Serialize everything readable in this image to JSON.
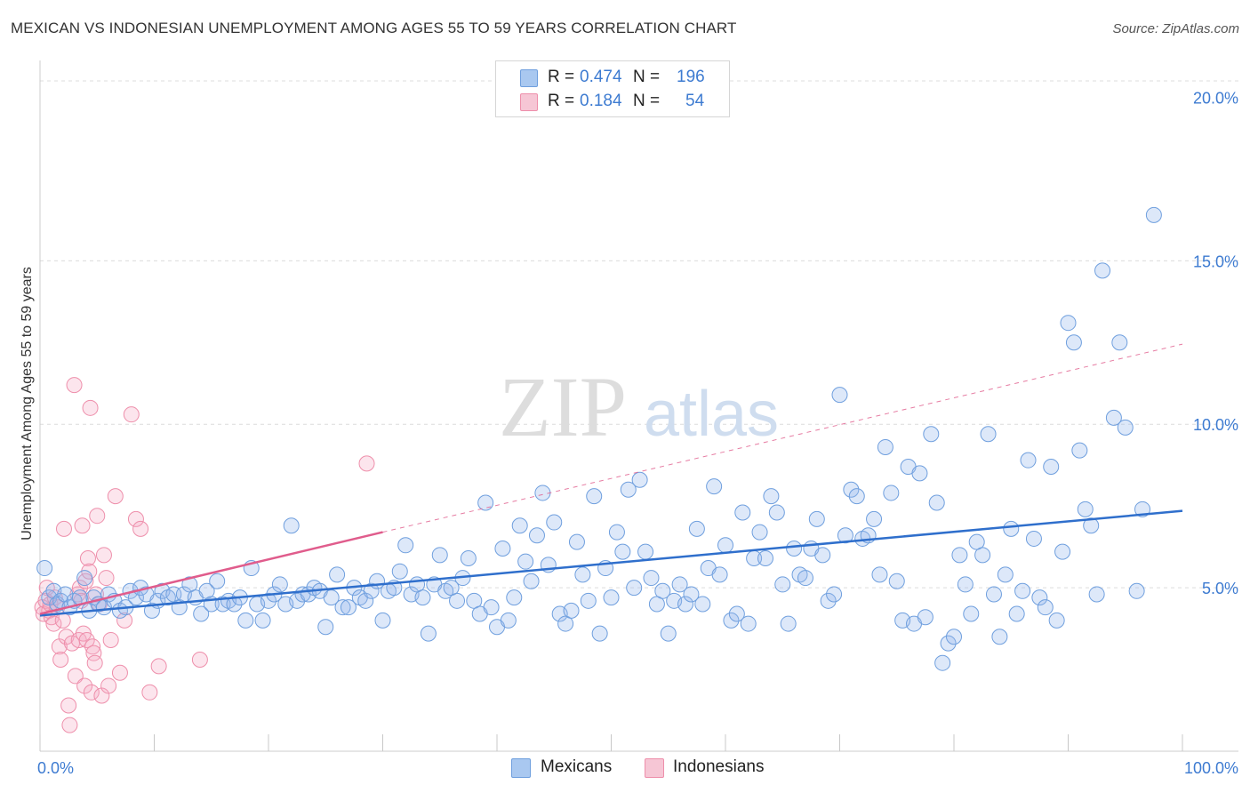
{
  "title": "MEXICAN VS INDONESIAN UNEMPLOYMENT AMONG AGES 55 TO 59 YEARS CORRELATION CHART",
  "source": "Source: ZipAtlas.com",
  "watermark": {
    "zip": "ZIP",
    "atlas": "atlas"
  },
  "legend_top": {
    "rows": [
      {
        "r_label": "R =",
        "r_value": "0.474",
        "n_label": "N =",
        "n_value": "196",
        "color": "#a9c8f0"
      },
      {
        "r_label": "R =",
        "r_value": "0.184",
        "n_label": "N =",
        "n_value": "54",
        "color": "#f6b9cb"
      }
    ]
  },
  "legend_bottom": {
    "items": [
      {
        "label": "Mexicans",
        "color": "#a9c8f0"
      },
      {
        "label": "Indonesians",
        "color": "#f6b9cb"
      }
    ]
  },
  "colors": {
    "blue_fill": "rgba(150,185,235,0.32)",
    "blue_stroke": "#6f9fde",
    "blue_line": "#2f6fcc",
    "pink_fill": "rgba(245,170,195,0.30)",
    "pink_stroke": "#ee8fab",
    "pink_line": "#e05c8c",
    "tick_label": "#3d7bd1",
    "grid": "#dcdcdc"
  },
  "chart_data": {
    "type": "scatter",
    "ylabel": "Unemployment Among Ages 55 to 59 years",
    "xlim": [
      0,
      100
    ],
    "ylim": [
      0,
      20.8
    ],
    "x_tick_labels": [
      {
        "value": 0,
        "label": "0.0%"
      },
      {
        "value": 100,
        "label": "100.0%"
      }
    ],
    "y_tick_labels": [
      {
        "value": 5,
        "label": "5.0%"
      },
      {
        "value": 10,
        "label": "10.0%"
      },
      {
        "value": 15,
        "label": "15.0%"
      },
      {
        "value": 20,
        "label": "20.0%"
      }
    ],
    "y_gridlines": [
      5,
      10,
      15,
      20.5
    ],
    "grid": true,
    "series": [
      {
        "name": "Mexicans",
        "r": 0.474,
        "n": 196,
        "trend": {
          "x0": 0,
          "y0": 4.15,
          "x1": 100,
          "y1": 7.35
        },
        "points": [
          [
            0.4,
            5.6
          ],
          [
            0.8,
            4.7
          ],
          [
            1.2,
            4.9
          ],
          [
            1.5,
            4.5
          ],
          [
            1.8,
            4.6
          ],
          [
            2.2,
            4.8
          ],
          [
            2.6,
            4.4
          ],
          [
            3.0,
            4.6
          ],
          [
            3.5,
            4.7
          ],
          [
            3.9,
            5.3
          ],
          [
            4.3,
            4.3
          ],
          [
            4.7,
            4.7
          ],
          [
            5.1,
            4.5
          ],
          [
            5.6,
            4.4
          ],
          [
            6.0,
            4.8
          ],
          [
            6.5,
            4.6
          ],
          [
            7.0,
            4.3
          ],
          [
            7.5,
            4.4
          ],
          [
            7.9,
            4.9
          ],
          [
            8.4,
            4.7
          ],
          [
            8.8,
            5.0
          ],
          [
            9.3,
            4.8
          ],
          [
            9.8,
            4.3
          ],
          [
            10.3,
            4.6
          ],
          [
            10.7,
            4.9
          ],
          [
            11.2,
            4.7
          ],
          [
            11.7,
            4.8
          ],
          [
            12.2,
            4.4
          ],
          [
            12.6,
            4.8
          ],
          [
            13.1,
            5.1
          ],
          [
            13.6,
            4.7
          ],
          [
            14.1,
            4.2
          ],
          [
            14.6,
            4.9
          ],
          [
            15.0,
            4.5
          ],
          [
            15.5,
            5.2
          ],
          [
            16.0,
            4.5
          ],
          [
            16.5,
            4.6
          ],
          [
            17.0,
            4.5
          ],
          [
            17.5,
            4.7
          ],
          [
            18.0,
            4.0
          ],
          [
            18.5,
            5.6
          ],
          [
            19.0,
            4.5
          ],
          [
            19.5,
            4.0
          ],
          [
            20.0,
            4.6
          ],
          [
            20.5,
            4.8
          ],
          [
            21.0,
            5.1
          ],
          [
            21.5,
            4.5
          ],
          [
            22.0,
            6.9
          ],
          [
            22.5,
            4.6
          ],
          [
            23.0,
            4.8
          ],
          [
            23.5,
            4.8
          ],
          [
            24.0,
            5.0
          ],
          [
            24.5,
            4.9
          ],
          [
            25.0,
            3.8
          ],
          [
            25.5,
            4.7
          ],
          [
            26.0,
            5.4
          ],
          [
            26.5,
            4.4
          ],
          [
            27.0,
            4.4
          ],
          [
            27.5,
            5.0
          ],
          [
            28.0,
            4.7
          ],
          [
            28.5,
            4.6
          ],
          [
            29.0,
            4.9
          ],
          [
            29.5,
            5.2
          ],
          [
            30.0,
            4.0
          ],
          [
            30.5,
            4.9
          ],
          [
            31.0,
            5.0
          ],
          [
            31.5,
            5.5
          ],
          [
            32.0,
            6.3
          ],
          [
            32.5,
            4.8
          ],
          [
            33.0,
            5.1
          ],
          [
            33.5,
            4.7
          ],
          [
            34.0,
            3.6
          ],
          [
            34.5,
            5.1
          ],
          [
            35.0,
            6.0
          ],
          [
            35.5,
            4.9
          ],
          [
            36.0,
            5.0
          ],
          [
            36.5,
            4.6
          ],
          [
            37.0,
            5.3
          ],
          [
            37.5,
            5.9
          ],
          [
            38.0,
            4.6
          ],
          [
            38.5,
            4.2
          ],
          [
            39.0,
            7.6
          ],
          [
            39.5,
            4.4
          ],
          [
            40.0,
            3.8
          ],
          [
            40.5,
            6.2
          ],
          [
            41.0,
            4.0
          ],
          [
            41.5,
            4.7
          ],
          [
            42.0,
            6.9
          ],
          [
            42.5,
            5.8
          ],
          [
            43.0,
            5.2
          ],
          [
            43.5,
            6.6
          ],
          [
            44.0,
            7.9
          ],
          [
            44.5,
            5.7
          ],
          [
            45.0,
            7.0
          ],
          [
            45.5,
            4.2
          ],
          [
            46.0,
            3.9
          ],
          [
            46.5,
            4.3
          ],
          [
            47.0,
            6.4
          ],
          [
            47.5,
            5.4
          ],
          [
            48.0,
            4.6
          ],
          [
            48.5,
            7.8
          ],
          [
            49.0,
            3.6
          ],
          [
            49.5,
            5.6
          ],
          [
            50.0,
            4.7
          ],
          [
            50.5,
            6.7
          ],
          [
            51.0,
            6.1
          ],
          [
            51.5,
            8.0
          ],
          [
            52.0,
            5.0
          ],
          [
            52.5,
            8.3
          ],
          [
            53.0,
            6.1
          ],
          [
            53.5,
            5.3
          ],
          [
            54.0,
            4.5
          ],
          [
            54.5,
            4.9
          ],
          [
            55.0,
            3.6
          ],
          [
            55.5,
            4.6
          ],
          [
            56.0,
            5.1
          ],
          [
            56.5,
            4.5
          ],
          [
            57.0,
            4.8
          ],
          [
            57.5,
            6.8
          ],
          [
            58.0,
            4.5
          ],
          [
            58.5,
            5.6
          ],
          [
            59.0,
            8.1
          ],
          [
            59.5,
            5.4
          ],
          [
            60.0,
            6.3
          ],
          [
            60.5,
            4.0
          ],
          [
            61.0,
            4.2
          ],
          [
            61.5,
            7.3
          ],
          [
            62.0,
            3.9
          ],
          [
            62.5,
            5.9
          ],
          [
            63.0,
            6.7
          ],
          [
            63.5,
            5.9
          ],
          [
            64.0,
            7.8
          ],
          [
            64.5,
            7.3
          ],
          [
            65.0,
            5.1
          ],
          [
            65.5,
            3.9
          ],
          [
            66.0,
            6.2
          ],
          [
            66.5,
            5.4
          ],
          [
            67.0,
            5.3
          ],
          [
            67.5,
            6.2
          ],
          [
            68.0,
            7.1
          ],
          [
            68.5,
            6.0
          ],
          [
            69.0,
            4.6
          ],
          [
            69.5,
            4.8
          ],
          [
            70.0,
            10.9
          ],
          [
            70.5,
            6.6
          ],
          [
            71.0,
            8.0
          ],
          [
            71.5,
            7.8
          ],
          [
            72.0,
            6.5
          ],
          [
            72.5,
            6.6
          ],
          [
            73.0,
            7.1
          ],
          [
            73.5,
            5.4
          ],
          [
            74.0,
            9.3
          ],
          [
            74.5,
            7.9
          ],
          [
            75.0,
            5.2
          ],
          [
            75.5,
            4.0
          ],
          [
            76.0,
            8.7
          ],
          [
            76.5,
            3.9
          ],
          [
            77.0,
            8.5
          ],
          [
            77.5,
            4.1
          ],
          [
            78.0,
            9.7
          ],
          [
            78.5,
            7.6
          ],
          [
            79.0,
            2.7
          ],
          [
            79.5,
            3.3
          ],
          [
            80.0,
            3.5
          ],
          [
            80.5,
            6.0
          ],
          [
            81.0,
            5.1
          ],
          [
            81.5,
            4.2
          ],
          [
            82.0,
            6.4
          ],
          [
            82.5,
            6.0
          ],
          [
            83.0,
            9.7
          ],
          [
            83.5,
            4.8
          ],
          [
            84.0,
            3.5
          ],
          [
            84.5,
            5.4
          ],
          [
            85.0,
            6.8
          ],
          [
            85.5,
            4.2
          ],
          [
            86.0,
            4.9
          ],
          [
            86.5,
            8.9
          ],
          [
            87.0,
            6.5
          ],
          [
            87.5,
            4.7
          ],
          [
            88.0,
            4.4
          ],
          [
            88.5,
            8.7
          ],
          [
            89.0,
            4.0
          ],
          [
            89.5,
            6.1
          ],
          [
            90.0,
            13.1
          ],
          [
            90.5,
            12.5
          ],
          [
            91.0,
            9.2
          ],
          [
            91.5,
            7.4
          ],
          [
            92.0,
            6.9
          ],
          [
            92.5,
            4.8
          ],
          [
            93.0,
            14.7
          ],
          [
            94.0,
            10.2
          ],
          [
            94.5,
            12.5
          ],
          [
            95.0,
            9.9
          ],
          [
            96.0,
            4.9
          ],
          [
            96.5,
            7.4
          ],
          [
            97.5,
            16.4
          ]
        ]
      },
      {
        "name": "Indonesians",
        "r": 0.184,
        "n": 54,
        "trend": {
          "x0": 0,
          "y0": 4.2,
          "x1": 30,
          "y1": 6.7
        },
        "trend_dashed": {
          "x0": 30,
          "y0": 6.7,
          "x1": 100,
          "y1": 12.45
        },
        "points": [
          [
            0.2,
            4.4
          ],
          [
            0.3,
            4.2
          ],
          [
            0.5,
            4.6
          ],
          [
            0.6,
            5.0
          ],
          [
            0.8,
            4.3
          ],
          [
            0.9,
            4.5
          ],
          [
            1.0,
            4.1
          ],
          [
            1.2,
            3.9
          ],
          [
            1.3,
            4.7
          ],
          [
            1.5,
            4.4
          ],
          [
            1.7,
            3.2
          ],
          [
            1.8,
            2.8
          ],
          [
            2.0,
            4.0
          ],
          [
            2.1,
            6.8
          ],
          [
            2.3,
            3.5
          ],
          [
            2.5,
            1.4
          ],
          [
            2.6,
            0.8
          ],
          [
            2.8,
            3.3
          ],
          [
            3.0,
            11.2
          ],
          [
            3.1,
            2.3
          ],
          [
            3.3,
            4.8
          ],
          [
            3.4,
            3.4
          ],
          [
            3.5,
            5.0
          ],
          [
            3.6,
            4.6
          ],
          [
            3.7,
            6.9
          ],
          [
            3.8,
            3.6
          ],
          [
            3.9,
            2.0
          ],
          [
            4.0,
            5.2
          ],
          [
            4.1,
            3.4
          ],
          [
            4.2,
            5.9
          ],
          [
            4.3,
            5.5
          ],
          [
            4.4,
            10.5
          ],
          [
            4.5,
            1.8
          ],
          [
            4.6,
            3.2
          ],
          [
            4.7,
            3.0
          ],
          [
            4.8,
            2.7
          ],
          [
            4.9,
            4.8
          ],
          [
            5.0,
            7.2
          ],
          [
            5.2,
            4.5
          ],
          [
            5.4,
            1.7
          ],
          [
            5.6,
            6.0
          ],
          [
            5.8,
            5.3
          ],
          [
            6.0,
            2.0
          ],
          [
            6.2,
            3.4
          ],
          [
            6.6,
            7.8
          ],
          [
            7.0,
            2.4
          ],
          [
            7.4,
            4.0
          ],
          [
            8.0,
            10.3
          ],
          [
            8.4,
            7.1
          ],
          [
            8.8,
            6.8
          ],
          [
            9.6,
            1.8
          ],
          [
            10.4,
            2.6
          ],
          [
            14.0,
            2.8
          ],
          [
            28.6,
            8.8
          ]
        ]
      }
    ]
  }
}
